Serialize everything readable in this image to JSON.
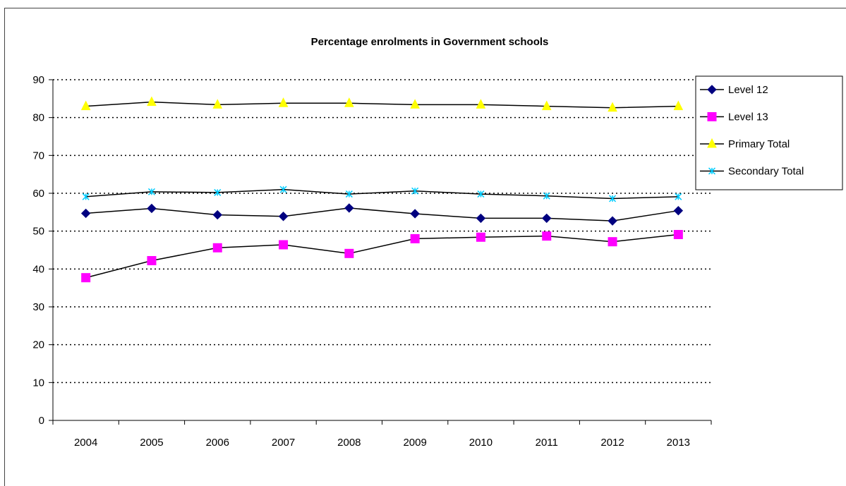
{
  "chart_data": {
    "type": "line",
    "title": "Percentage enrolments in Government schools",
    "xlabel": "",
    "ylabel": "",
    "categories": [
      "2004",
      "2005",
      "2006",
      "2007",
      "2008",
      "2009",
      "2010",
      "2011",
      "2012",
      "2013"
    ],
    "ylim": [
      0,
      90
    ],
    "yticks": [
      "0",
      "10",
      "20",
      "30",
      "40",
      "50",
      "60",
      "70",
      "80",
      "90"
    ],
    "grid": "horizontal dotted",
    "legend_position": "right",
    "series": [
      {
        "name": "Level 12",
        "marker": "diamond",
        "color": "#000080",
        "values": [
          54.7,
          56.0,
          54.3,
          53.9,
          56.1,
          54.6,
          53.4,
          53.4,
          52.7,
          55.4
        ]
      },
      {
        "name": "Level 13",
        "marker": "square",
        "color": "#FF00FF",
        "values": [
          37.7,
          42.2,
          45.6,
          46.4,
          44.1,
          48.0,
          48.4,
          48.7,
          47.2,
          49.1
        ]
      },
      {
        "name": "Primary Total",
        "marker": "triangle",
        "color": "#FFFF00",
        "values": [
          83.0,
          84.1,
          83.4,
          83.8,
          83.8,
          83.4,
          83.4,
          83.0,
          82.6,
          83.0
        ]
      },
      {
        "name": "Secondary Total",
        "marker": "asterisk",
        "color": "#00CCFF",
        "values": [
          59.1,
          60.4,
          60.2,
          61.0,
          59.8,
          60.6,
          59.8,
          59.3,
          58.6,
          59.1
        ]
      }
    ],
    "line_color": "#000000"
  }
}
